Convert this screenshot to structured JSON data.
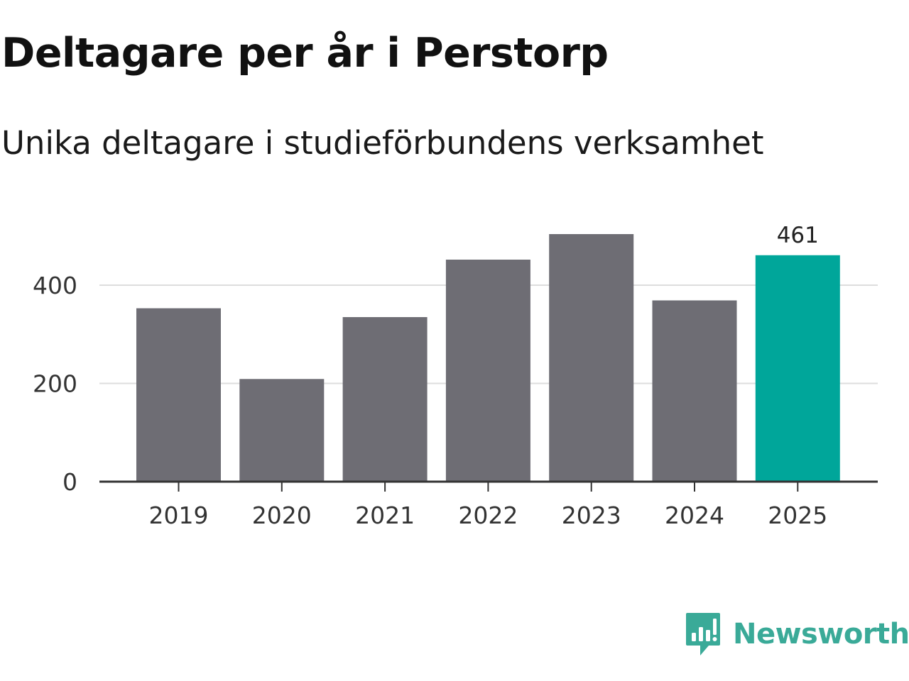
{
  "header": {
    "title": "Deltagare per år i Perstorp",
    "subtitle": "Unika deltagare i studieförbundens verksamhet"
  },
  "brand": {
    "name": "Newsworthy",
    "icon": "newsworthy-logo-icon",
    "color": "#3aaa98"
  },
  "colors": {
    "bar_default": "#6e6d74",
    "bar_highlight": "#00a69a",
    "grid": "#dddddd",
    "axis": "#333333"
  },
  "chart_data": {
    "type": "bar",
    "title": "Deltagare per år i Perstorp",
    "subtitle": "Unika deltagare i studieförbundens verksamhet",
    "xlabel": "",
    "ylabel": "",
    "categories": [
      "2019",
      "2020",
      "2021",
      "2022",
      "2023",
      "2024",
      "2025"
    ],
    "values": [
      353,
      209,
      335,
      452,
      504,
      369,
      461
    ],
    "highlight_index": 6,
    "data_labels": [
      {
        "index": 6,
        "text": "461"
      }
    ],
    "ylim": [
      0,
      504
    ],
    "yticks": [
      0,
      200,
      400
    ],
    "ytick_labels": [
      "0",
      "200",
      "400"
    ],
    "grid": true
  }
}
